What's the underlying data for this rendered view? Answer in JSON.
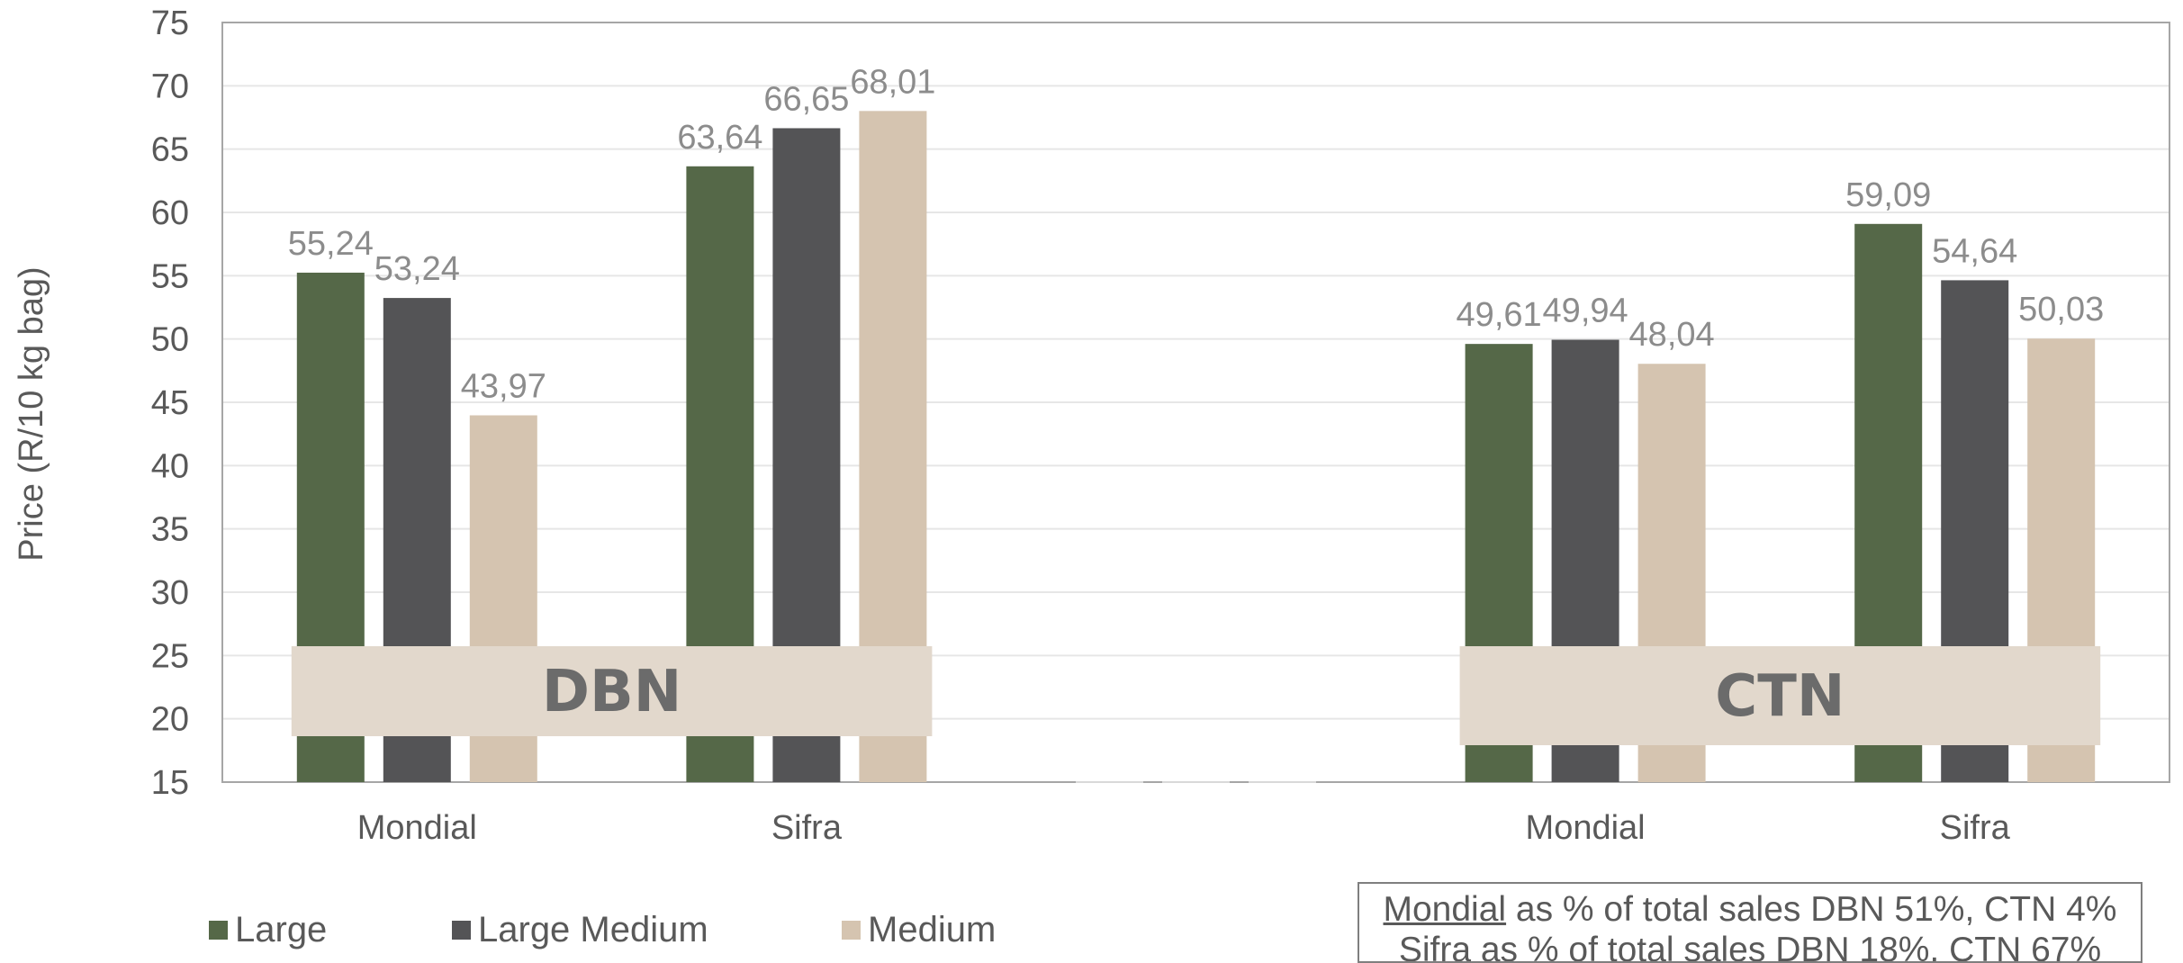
{
  "chart_data": {
    "type": "bar",
    "ylabel": "Price (R/10 kg bag)",
    "ylim": [
      15,
      75
    ],
    "ytick_step": 5,
    "yticks": [
      "15",
      "20",
      "25",
      "30",
      "35",
      "40",
      "45",
      "50",
      "55",
      "60",
      "65",
      "70",
      "75"
    ],
    "grid": true,
    "groups": [
      {
        "region": "DBN",
        "category": "Mondial",
        "values": [
          55.24,
          53.24,
          43.97
        ],
        "labels": [
          "55,24",
          "53,24",
          "43,97"
        ]
      },
      {
        "region": "DBN",
        "category": "Sifra",
        "values": [
          63.64,
          66.65,
          68.01
        ],
        "labels": [
          "63,64",
          "66,65",
          "68,01"
        ]
      },
      {
        "region": "",
        "category": "",
        "values": [
          0,
          0,
          0
        ],
        "labels": [
          "",
          "",
          ""
        ]
      },
      {
        "region": "CTN",
        "category": "Mondial",
        "values": [
          49.61,
          49.94,
          48.04
        ],
        "labels": [
          "49,61",
          "49,94",
          "48,04"
        ]
      },
      {
        "region": "CTN",
        "category": "Sifra",
        "values": [
          59.09,
          54.64,
          50.03
        ],
        "labels": [
          "59,09",
          "54,64",
          "50,03"
        ]
      }
    ],
    "series": [
      {
        "name": "Large",
        "color": "#556848"
      },
      {
        "name": "Large Medium",
        "color": "#545456"
      },
      {
        "name": "Medium",
        "color": "#d5c4b0"
      }
    ],
    "legend_position": "bottom-left",
    "region_labels": [
      "DBN",
      "CTN"
    ],
    "region_label_color": "#e2d8cc"
  },
  "note": {
    "line1_underlined": "Mondial",
    "line1_rest": " as % of total sales DBN 51%, CTN 4%",
    "line2": "Sifra as % of total sales DBN 18%, CTN 67%"
  }
}
